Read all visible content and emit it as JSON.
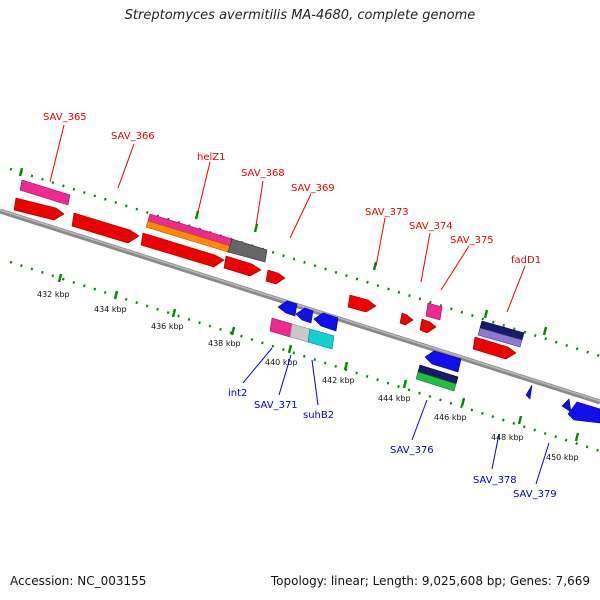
{
  "title": "Streptomyces avermitilis MA-4680, complete genome",
  "footer": {
    "accession": "Accession: NC_003155",
    "summary": "Topology: linear; Length: 9,025,608 bp; Genes: 7,669"
  },
  "colors": {
    "forward": "#ee0000",
    "reverse": "#0000ee",
    "backbone": "#8a8a8a",
    "tick": "#0a8a0a"
  },
  "ruler": [
    "432 kbp",
    "434 kbp",
    "436 kbp",
    "438 kbp",
    "440 kbp",
    "442 kbp",
    "444 kbp",
    "446 kbp",
    "448 kbp",
    "450 kbp"
  ],
  "labels_top": [
    "SAV_365",
    "SAV_366",
    "helZ1",
    "SAV_368",
    "SAV_369",
    "SAV_373",
    "SAV_374",
    "SAV_375",
    "fadD1"
  ],
  "labels_bottom": [
    "int2",
    "SAV_371",
    "suhB2",
    "SAV_376",
    "SAV_378",
    "SAV_379"
  ]
}
